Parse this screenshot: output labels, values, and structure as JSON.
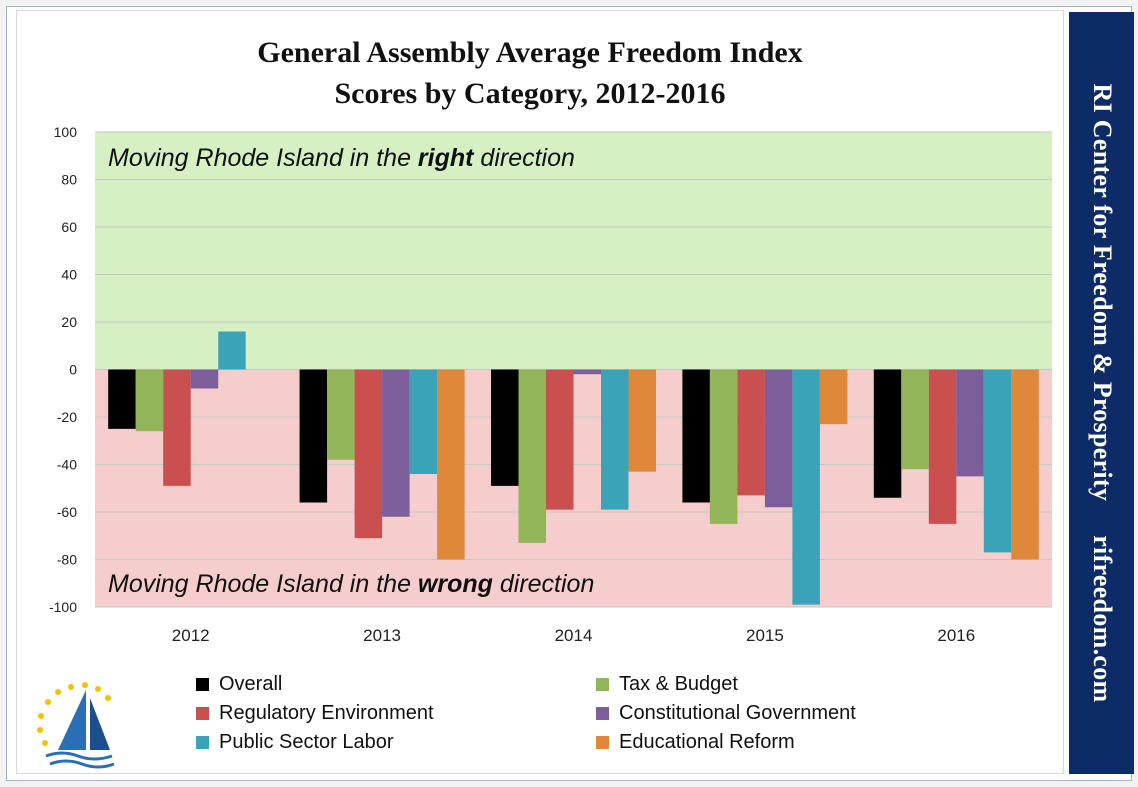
{
  "banner": {
    "org": "RI Center for Freedom & Prosperity",
    "site": "rifreedom.com"
  },
  "chart_data": {
    "type": "bar",
    "title_line1": "General Assembly Average Freedom Index",
    "title_line2": "Scores by Category, 2012-2016",
    "categories": [
      "2012",
      "2013",
      "2014",
      "2015",
      "2016"
    ],
    "ylim": [
      -100,
      100
    ],
    "yticks": [
      100,
      80,
      60,
      40,
      20,
      0,
      -20,
      -40,
      -60,
      -80,
      -100
    ],
    "grid": true,
    "legend_position": "bottom",
    "zones": {
      "positive": {
        "text_pre": "Moving Rhode Island in the ",
        "text_bold": "right",
        "text_post": " direction",
        "color": "#d6f0c4"
      },
      "negative": {
        "text_pre": "Moving Rhode Island in the ",
        "text_bold": "wrong",
        "text_post": " direction",
        "color": "#f5cdcd"
      }
    },
    "series": [
      {
        "name": "Overall",
        "color": "#000000",
        "values": [
          -25,
          -56,
          -49,
          -56,
          -54
        ]
      },
      {
        "name": "Tax & Budget",
        "color": "#92b55a",
        "values": [
          -26,
          -38,
          -73,
          -65,
          -42
        ]
      },
      {
        "name": "Regulatory Environment",
        "color": "#c9504e",
        "values": [
          -49,
          -71,
          -59,
          -53,
          -65
        ]
      },
      {
        "name": "Constitutional Government",
        "color": "#7c5e9b",
        "values": [
          -8,
          -62,
          -2,
          -58,
          -45
        ]
      },
      {
        "name": "Public Sector Labor",
        "color": "#3aa3b8",
        "values": [
          16,
          -44,
          -59,
          -99,
          -77
        ]
      },
      {
        "name": "Educational Reform",
        "color": "#e0883a",
        "values": [
          0,
          -80,
          -43,
          -23,
          -80
        ]
      }
    ]
  }
}
